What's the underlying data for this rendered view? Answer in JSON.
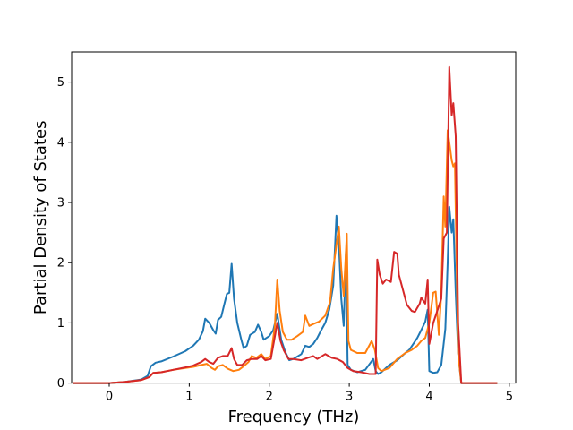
{
  "chart_data": {
    "type": "line",
    "title": "",
    "xlabel": "Frequency (THz)",
    "ylabel": "Partial Density of States",
    "xlim": [
      -0.47,
      5.08
    ],
    "ylim": [
      0,
      5.5
    ],
    "xticks": [
      0,
      1,
      2,
      3,
      4,
      5
    ],
    "yticks": [
      0,
      1,
      2,
      3,
      4,
      5
    ],
    "grid": false,
    "legend": "none",
    "series": [
      {
        "color": "#1f77b4",
        "points": [
          [
            -0.45,
            0
          ],
          [
            0,
            0
          ],
          [
            0.2,
            0.02
          ],
          [
            0.4,
            0.06
          ],
          [
            0.48,
            0.12
          ],
          [
            0.52,
            0.28
          ],
          [
            0.58,
            0.34
          ],
          [
            0.65,
            0.36
          ],
          [
            0.8,
            0.44
          ],
          [
            0.95,
            0.53
          ],
          [
            1.05,
            0.62
          ],
          [
            1.12,
            0.72
          ],
          [
            1.17,
            0.86
          ],
          [
            1.2,
            1.07
          ],
          [
            1.25,
            1.0
          ],
          [
            1.3,
            0.88
          ],
          [
            1.33,
            0.82
          ],
          [
            1.36,
            1.05
          ],
          [
            1.4,
            1.1
          ],
          [
            1.44,
            1.32
          ],
          [
            1.47,
            1.48
          ],
          [
            1.5,
            1.5
          ],
          [
            1.53,
            1.98
          ],
          [
            1.56,
            1.4
          ],
          [
            1.6,
            1.0
          ],
          [
            1.65,
            0.72
          ],
          [
            1.68,
            0.58
          ],
          [
            1.72,
            0.62
          ],
          [
            1.76,
            0.8
          ],
          [
            1.82,
            0.85
          ],
          [
            1.86,
            0.97
          ],
          [
            1.9,
            0.85
          ],
          [
            1.93,
            0.72
          ],
          [
            2.0,
            0.78
          ],
          [
            2.05,
            0.88
          ],
          [
            2.1,
            1.15
          ],
          [
            2.15,
            0.72
          ],
          [
            2.2,
            0.52
          ],
          [
            2.25,
            0.38
          ],
          [
            2.3,
            0.4
          ],
          [
            2.4,
            0.48
          ],
          [
            2.45,
            0.62
          ],
          [
            2.5,
            0.6
          ],
          [
            2.55,
            0.65
          ],
          [
            2.6,
            0.75
          ],
          [
            2.65,
            0.88
          ],
          [
            2.7,
            1.0
          ],
          [
            2.75,
            1.22
          ],
          [
            2.8,
            1.62
          ],
          [
            2.84,
            2.78
          ],
          [
            2.87,
            2.3
          ],
          [
            2.9,
            1.4
          ],
          [
            2.93,
            0.95
          ],
          [
            2.96,
            2.2
          ],
          [
            2.98,
            0.3
          ],
          [
            3.02,
            0.22
          ],
          [
            3.1,
            0.18
          ],
          [
            3.2,
            0.22
          ],
          [
            3.3,
            0.4
          ],
          [
            3.33,
            0.2
          ],
          [
            3.36,
            0.15
          ],
          [
            3.4,
            0.18
          ],
          [
            3.5,
            0.3
          ],
          [
            3.6,
            0.38
          ],
          [
            3.7,
            0.5
          ],
          [
            3.75,
            0.55
          ],
          [
            3.8,
            0.65
          ],
          [
            3.85,
            0.75
          ],
          [
            3.9,
            0.88
          ],
          [
            3.95,
            1.02
          ],
          [
            3.98,
            1.22
          ],
          [
            4.0,
            0.2
          ],
          [
            4.05,
            0.17
          ],
          [
            4.1,
            0.18
          ],
          [
            4.15,
            0.3
          ],
          [
            4.2,
            0.9
          ],
          [
            4.23,
            2.0
          ],
          [
            4.25,
            2.93
          ],
          [
            4.28,
            2.5
          ],
          [
            4.3,
            2.72
          ],
          [
            4.33,
            1.5
          ],
          [
            4.36,
            0.5
          ],
          [
            4.4,
            0
          ],
          [
            4.85,
            0
          ]
        ]
      },
      {
        "color": "#ff7f0e",
        "points": [
          [
            -0.45,
            0
          ],
          [
            0,
            0
          ],
          [
            0.2,
            0.02
          ],
          [
            0.4,
            0.05
          ],
          [
            0.5,
            0.1
          ],
          [
            0.55,
            0.17
          ],
          [
            0.65,
            0.18
          ],
          [
            0.8,
            0.22
          ],
          [
            0.95,
            0.25
          ],
          [
            1.05,
            0.27
          ],
          [
            1.15,
            0.3
          ],
          [
            1.22,
            0.32
          ],
          [
            1.28,
            0.25
          ],
          [
            1.32,
            0.22
          ],
          [
            1.36,
            0.28
          ],
          [
            1.42,
            0.3
          ],
          [
            1.48,
            0.24
          ],
          [
            1.55,
            0.2
          ],
          [
            1.62,
            0.22
          ],
          [
            1.68,
            0.28
          ],
          [
            1.74,
            0.35
          ],
          [
            1.78,
            0.45
          ],
          [
            1.84,
            0.42
          ],
          [
            1.9,
            0.48
          ],
          [
            1.95,
            0.4
          ],
          [
            2.02,
            0.45
          ],
          [
            2.07,
            0.95
          ],
          [
            2.1,
            1.72
          ],
          [
            2.13,
            1.2
          ],
          [
            2.17,
            0.85
          ],
          [
            2.22,
            0.72
          ],
          [
            2.28,
            0.72
          ],
          [
            2.35,
            0.78
          ],
          [
            2.42,
            0.85
          ],
          [
            2.45,
            1.12
          ],
          [
            2.5,
            0.95
          ],
          [
            2.55,
            0.98
          ],
          [
            2.62,
            1.02
          ],
          [
            2.7,
            1.12
          ],
          [
            2.76,
            1.35
          ],
          [
            2.8,
            1.9
          ],
          [
            2.84,
            2.3
          ],
          [
            2.87,
            2.6
          ],
          [
            2.9,
            1.9
          ],
          [
            2.93,
            1.45
          ],
          [
            2.97,
            2.48
          ],
          [
            2.99,
            0.7
          ],
          [
            3.02,
            0.55
          ],
          [
            3.1,
            0.5
          ],
          [
            3.2,
            0.5
          ],
          [
            3.28,
            0.7
          ],
          [
            3.32,
            0.55
          ],
          [
            3.36,
            0.25
          ],
          [
            3.4,
            0.2
          ],
          [
            3.5,
            0.25
          ],
          [
            3.6,
            0.4
          ],
          [
            3.7,
            0.5
          ],
          [
            3.78,
            0.55
          ],
          [
            3.85,
            0.62
          ],
          [
            3.9,
            0.7
          ],
          [
            3.95,
            0.75
          ],
          [
            4.0,
            1.0
          ],
          [
            4.05,
            1.5
          ],
          [
            4.08,
            1.52
          ],
          [
            4.12,
            0.8
          ],
          [
            4.15,
            1.5
          ],
          [
            4.18,
            3.1
          ],
          [
            4.2,
            2.6
          ],
          [
            4.23,
            4.2
          ],
          [
            4.25,
            4.0
          ],
          [
            4.28,
            3.7
          ],
          [
            4.3,
            3.6
          ],
          [
            4.32,
            3.65
          ],
          [
            4.36,
            0.5
          ],
          [
            4.4,
            0
          ],
          [
            4.85,
            0
          ]
        ]
      },
      {
        "color": "#d62728",
        "points": [
          [
            -0.45,
            0
          ],
          [
            0,
            0
          ],
          [
            0.2,
            0.02
          ],
          [
            0.4,
            0.05
          ],
          [
            0.5,
            0.1
          ],
          [
            0.55,
            0.17
          ],
          [
            0.65,
            0.18
          ],
          [
            0.8,
            0.22
          ],
          [
            0.95,
            0.26
          ],
          [
            1.05,
            0.29
          ],
          [
            1.15,
            0.35
          ],
          [
            1.2,
            0.4
          ],
          [
            1.25,
            0.35
          ],
          [
            1.3,
            0.32
          ],
          [
            1.36,
            0.42
          ],
          [
            1.42,
            0.45
          ],
          [
            1.48,
            0.45
          ],
          [
            1.53,
            0.58
          ],
          [
            1.56,
            0.4
          ],
          [
            1.6,
            0.3
          ],
          [
            1.66,
            0.3
          ],
          [
            1.72,
            0.38
          ],
          [
            1.78,
            0.4
          ],
          [
            1.85,
            0.4
          ],
          [
            1.9,
            0.45
          ],
          [
            1.95,
            0.38
          ],
          [
            2.02,
            0.4
          ],
          [
            2.06,
            0.7
          ],
          [
            2.1,
            1.0
          ],
          [
            2.14,
            0.7
          ],
          [
            2.18,
            0.55
          ],
          [
            2.24,
            0.4
          ],
          [
            2.3,
            0.4
          ],
          [
            2.4,
            0.38
          ],
          [
            2.48,
            0.42
          ],
          [
            2.55,
            0.45
          ],
          [
            2.6,
            0.4
          ],
          [
            2.7,
            0.48
          ],
          [
            2.78,
            0.42
          ],
          [
            2.85,
            0.4
          ],
          [
            2.92,
            0.35
          ],
          [
            2.98,
            0.25
          ],
          [
            3.05,
            0.2
          ],
          [
            3.15,
            0.18
          ],
          [
            3.25,
            0.15
          ],
          [
            3.33,
            0.15
          ],
          [
            3.35,
            2.05
          ],
          [
            3.38,
            1.8
          ],
          [
            3.42,
            1.65
          ],
          [
            3.46,
            1.72
          ],
          [
            3.52,
            1.68
          ],
          [
            3.56,
            2.18
          ],
          [
            3.6,
            2.15
          ],
          [
            3.62,
            1.8
          ],
          [
            3.68,
            1.5
          ],
          [
            3.72,
            1.3
          ],
          [
            3.78,
            1.2
          ],
          [
            3.82,
            1.18
          ],
          [
            3.88,
            1.32
          ],
          [
            3.9,
            1.42
          ],
          [
            3.95,
            1.32
          ],
          [
            3.98,
            1.72
          ],
          [
            4.0,
            0.65
          ],
          [
            4.05,
            1.0
          ],
          [
            4.1,
            1.2
          ],
          [
            4.15,
            1.4
          ],
          [
            4.18,
            2.4
          ],
          [
            4.22,
            2.5
          ],
          [
            4.25,
            5.25
          ],
          [
            4.28,
            4.45
          ],
          [
            4.3,
            4.65
          ],
          [
            4.33,
            4.1
          ],
          [
            4.36,
            1.0
          ],
          [
            4.4,
            0
          ],
          [
            4.85,
            0
          ]
        ]
      }
    ]
  }
}
